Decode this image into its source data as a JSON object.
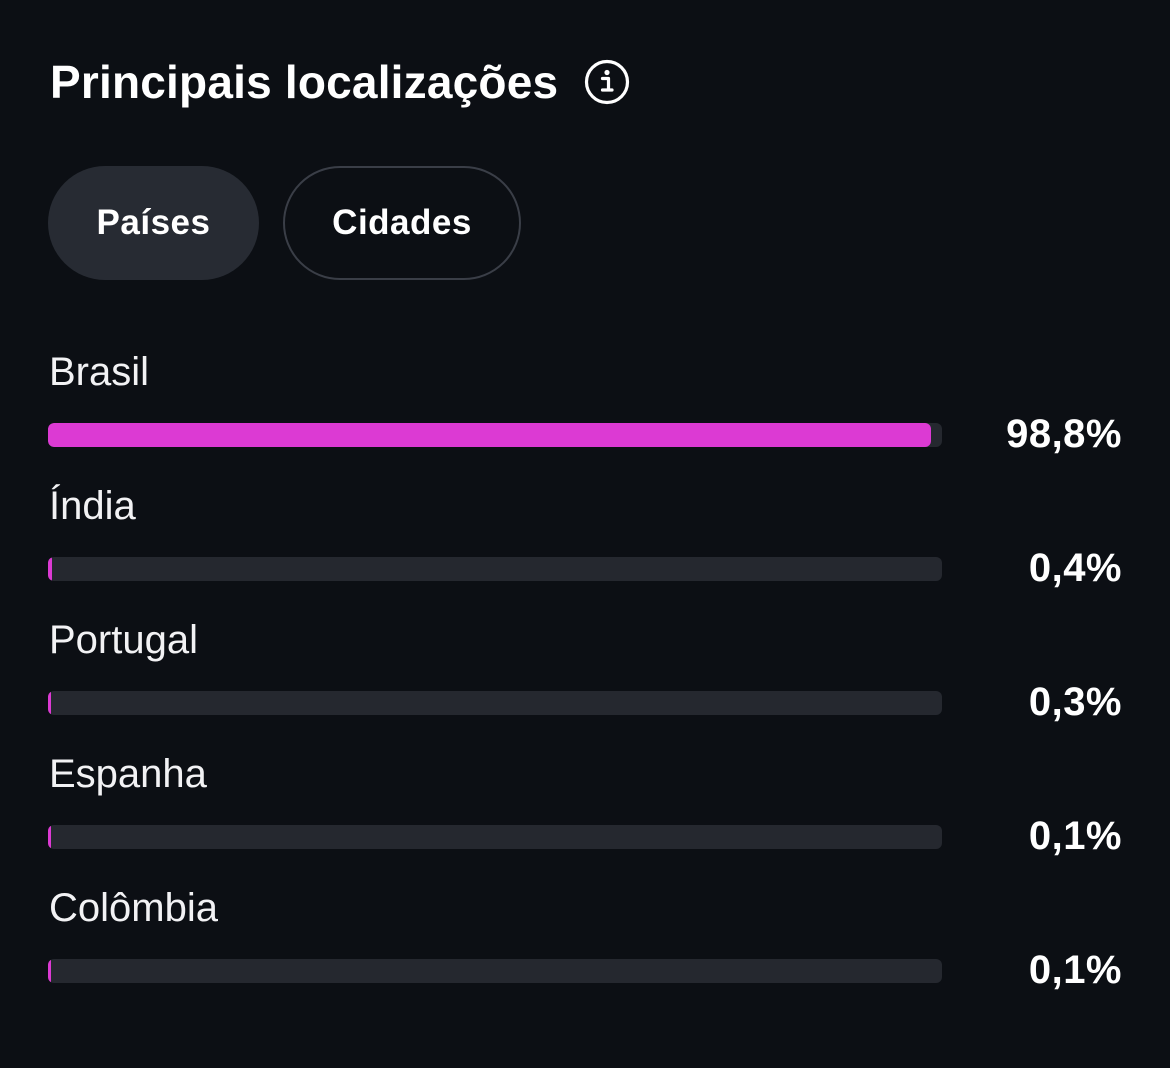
{
  "header": {
    "title": "Principais localizações",
    "info_icon": "info-icon"
  },
  "tabs": [
    {
      "label": "Países",
      "active": true
    },
    {
      "label": "Cidades",
      "active": false
    }
  ],
  "colors": {
    "background": "#0c0f14",
    "bar_fill": "#dc3ad3",
    "bar_track": "#25282f",
    "active_tab": "#272b33"
  },
  "locations": [
    {
      "name": "Brasil",
      "percent_label": "98,8%",
      "value": 98.8
    },
    {
      "name": "Índia",
      "percent_label": "0,4%",
      "value": 0.4
    },
    {
      "name": "Portugal",
      "percent_label": "0,3%",
      "value": 0.3
    },
    {
      "name": "Espanha",
      "percent_label": "0,1%",
      "value": 0.1
    },
    {
      "name": "Colômbia",
      "percent_label": "0,1%",
      "value": 0.1
    }
  ]
}
